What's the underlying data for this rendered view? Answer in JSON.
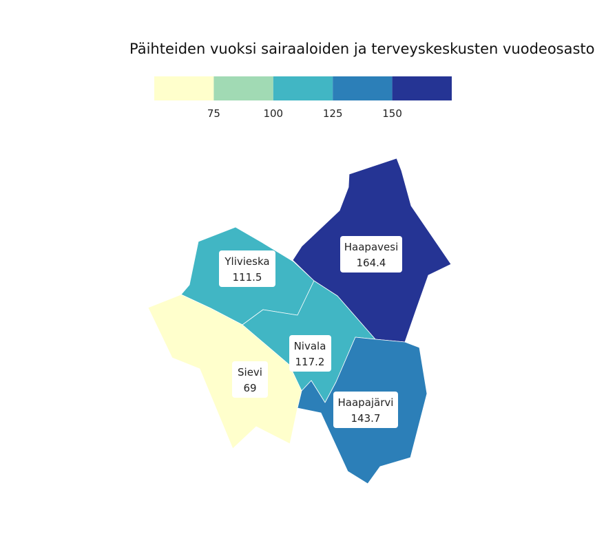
{
  "map": {
    "title": "Päihteiden vuoksi sairaaloiden ja terveyskeskusten vuodeosastoil"
  },
  "legend": {
    "colors": [
      "#ffffcc",
      "#a1dab4",
      "#41b6c4",
      "#2c7fb8",
      "#253494"
    ],
    "ticks": [
      "75",
      "100",
      "125",
      "150"
    ],
    "breaks": [
      75,
      100,
      125,
      150
    ]
  },
  "regions": [
    {
      "name": "Haapavesi",
      "value": 164.4,
      "value_label": "164.4",
      "color": "#253494"
    },
    {
      "name": "Ylivieska",
      "value": 111.5,
      "value_label": "111.5",
      "color": "#41b6c4"
    },
    {
      "name": "Nivala",
      "value": 117.2,
      "value_label": "117.2",
      "color": "#41b6c4"
    },
    {
      "name": "Sievi",
      "value": 69,
      "value_label": "69",
      "color": "#ffffcc"
    },
    {
      "name": "Haapajärvi",
      "value": 143.7,
      "value_label": "143.7",
      "color": "#2c7fb8"
    }
  ]
}
